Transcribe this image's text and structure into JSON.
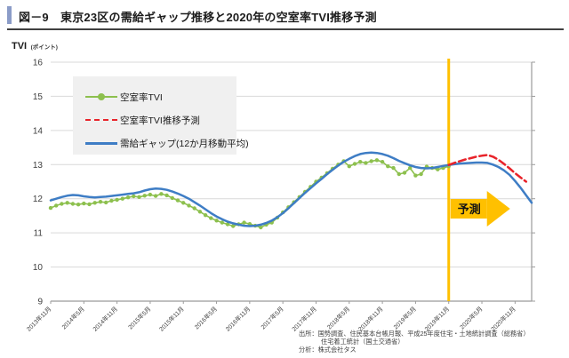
{
  "header": {
    "figure_title": "図－9　東京23区の需給ギャップ推移と2020年の空室率TVI推移予測"
  },
  "y_axis": {
    "title": "TVI",
    "unit": "(ポイント)"
  },
  "footer": {
    "source_line1": "出所：国勢調査、住民基本台帳月報、平成25年度住宅・土地統計調査（総務省）",
    "source_line2": "住宅着工統計（国土交通省）",
    "analysis_line": "分析：株式会社タス"
  },
  "colors": {
    "accent_bar": "#8b9cc8",
    "title_rule": "#404040",
    "gridline": "#d9d9d9",
    "axis": "#9b9b9b",
    "tick_text": "#3f3f3f",
    "forecast_yellow": "#ffc000",
    "vacancy_green": "#8dc04e",
    "forecast_red": "#e8232a",
    "gap_blue": "#3e7dc5"
  },
  "chart_data": {
    "type": "line",
    "title": "東京23区の需給ギャップ推移と2020年の空室率TVI推移予測",
    "ylabel": "TVI",
    "ylabel_unit": "(ポイント)",
    "ylim": [
      9,
      16
    ],
    "yticks": [
      16,
      15,
      14,
      13,
      12,
      11,
      10,
      9
    ],
    "grid": "horizontal",
    "legend_position": "upper-left-inside",
    "x_is_monthly": true,
    "x_start": "2013年11月",
    "x_months_total": 88,
    "xtick_labels": [
      "2013年11月",
      "2014年5月",
      "2014年11月",
      "2015年5月",
      "2015年11月",
      "2016年5月",
      "2016年11月",
      "2017年5月",
      "2017年11月",
      "2018年5月",
      "2018年11月",
      "2019年5月",
      "2019年11月",
      "2020年5月",
      "2020年11月"
    ],
    "xtick_month_indices": [
      0,
      6,
      12,
      18,
      24,
      30,
      36,
      42,
      48,
      54,
      60,
      66,
      72,
      78,
      84
    ],
    "forecast_divider_month_index": 72,
    "forecast_divider_label": "2019年11月",
    "annotations": {
      "forecast_label": "予測",
      "arrow_color": "#ffc000"
    },
    "series": [
      {
        "name": "空室率TVI",
        "style": "solid-marker",
        "color": "#8dc04e",
        "start_month": 0,
        "values": [
          11.73,
          11.8,
          11.85,
          11.88,
          11.85,
          11.83,
          11.86,
          11.84,
          11.88,
          11.91,
          11.89,
          11.94,
          11.97,
          12.0,
          12.04,
          12.07,
          12.05,
          12.09,
          12.12,
          12.08,
          12.14,
          12.1,
          12.02,
          11.95,
          11.88,
          11.8,
          11.72,
          11.62,
          11.52,
          11.43,
          11.36,
          11.3,
          11.25,
          11.2,
          11.25,
          11.3,
          11.26,
          11.21,
          11.16,
          11.24,
          11.3,
          11.45,
          11.6,
          11.75,
          11.9,
          12.05,
          12.2,
          12.35,
          12.5,
          12.62,
          12.75,
          12.88,
          13.0,
          13.1,
          12.95,
          13.02,
          13.08,
          13.05,
          13.1,
          13.13,
          13.08,
          12.95,
          12.9,
          12.72,
          12.76,
          12.9,
          12.68,
          12.72,
          12.94,
          12.9,
          12.86,
          12.9,
          12.95
        ]
      },
      {
        "name": "空室率TVI推移予測",
        "style": "dashed",
        "color": "#e8232a",
        "start_month": 72,
        "values": [
          12.99,
          13.05,
          13.1,
          13.15,
          13.19,
          13.23,
          13.26,
          13.28,
          13.23,
          13.14,
          13.02,
          12.89,
          12.75,
          12.62,
          12.5
        ]
      },
      {
        "name": "需給ギャップ(12か月移動平均)",
        "style": "solid",
        "color": "#3e7dc5",
        "start_month": 0,
        "values": [
          11.95,
          12.0,
          12.05,
          12.09,
          12.11,
          12.1,
          12.07,
          12.05,
          12.04,
          12.05,
          12.06,
          12.08,
          12.1,
          12.12,
          12.14,
          12.16,
          12.19,
          12.24,
          12.28,
          12.3,
          12.29,
          12.26,
          12.21,
          12.15,
          12.08,
          12.0,
          11.9,
          11.8,
          11.69,
          11.58,
          11.48,
          11.4,
          11.33,
          11.28,
          11.24,
          11.21,
          11.2,
          11.21,
          11.24,
          11.29,
          11.36,
          11.46,
          11.58,
          11.72,
          11.87,
          12.02,
          12.17,
          12.31,
          12.45,
          12.58,
          12.72,
          12.85,
          12.97,
          13.08,
          13.17,
          13.25,
          13.31,
          13.34,
          13.35,
          13.34,
          13.31,
          13.26,
          13.19,
          13.11,
          13.04,
          12.98,
          12.93,
          12.9,
          12.89,
          12.9,
          12.93,
          12.96,
          12.99,
          13.01,
          13.03,
          13.04,
          13.05,
          13.06,
          13.06,
          13.05,
          13.0,
          12.93,
          12.83,
          12.7,
          12.52,
          12.32,
          12.1,
          11.88
        ]
      }
    ]
  }
}
